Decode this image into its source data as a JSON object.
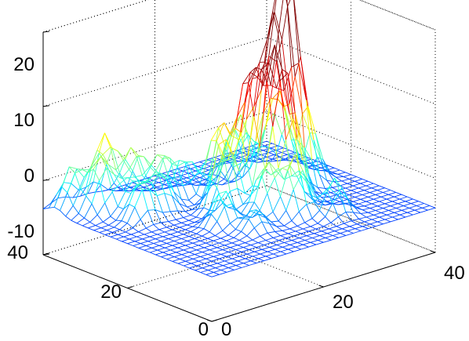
{
  "chart_data": {
    "type": "surface-mesh",
    "title": "",
    "xlabel": "",
    "ylabel": "",
    "zlabel": "",
    "xlim": [
      0,
      40
    ],
    "ylim": [
      0,
      40
    ],
    "zlim": [
      -10,
      20
    ],
    "x_ticks": [
      "0",
      "20",
      "40"
    ],
    "y_ticks": [
      "0",
      "20",
      "40"
    ],
    "z_ticks": [
      "-10",
      "0",
      "10",
      "20"
    ],
    "grid": true,
    "colormap": "jet",
    "colormap_colors": [
      "#00008f",
      "#0000ff",
      "#00ffff",
      "#ffff00",
      "#ff0000",
      "#800000"
    ],
    "color_range": [
      -10,
      14
    ],
    "grid_size": 31,
    "baseline_z": -4,
    "peaks": [
      {
        "x": 29,
        "y": 22,
        "z": 17.5,
        "width": 1.6
      },
      {
        "x": 23,
        "y": 22,
        "z": 11,
        "width": 1.6
      },
      {
        "x": 26,
        "y": 24,
        "z": 9,
        "width": 1.6
      },
      {
        "x": 30,
        "y": 25,
        "z": 11,
        "width": 1.6
      },
      {
        "x": 25,
        "y": 19,
        "z": 13,
        "width": 1.6
      },
      {
        "x": 27,
        "y": 17,
        "z": 8,
        "width": 1.6
      },
      {
        "x": 31,
        "y": 21,
        "z": 10,
        "width": 1.5
      },
      {
        "x": 33,
        "y": 28,
        "z": 7,
        "width": 1.6
      },
      {
        "x": 21,
        "y": 26,
        "z": 6,
        "width": 1.6
      },
      {
        "x": 18,
        "y": 21,
        "z": 6,
        "width": 1.6
      },
      {
        "x": 24,
        "y": 12,
        "z": 4,
        "width": 1.6
      },
      {
        "x": 29,
        "y": 32,
        "z": 4,
        "width": 1.6
      },
      {
        "x": 21,
        "y": 15,
        "z": 3,
        "width": 1.6
      },
      {
        "x": 14,
        "y": 16,
        "z": 1,
        "width": 1.5
      },
      {
        "x": 11,
        "y": 27,
        "z": 1,
        "width": 1.6
      },
      {
        "x": 8,
        "y": 30,
        "z": 0,
        "width": 1.6
      },
      {
        "x": 16,
        "y": 11,
        "z": -1,
        "width": 1.5
      },
      {
        "x": 5,
        "y": 33,
        "z": 3,
        "width": 1.6
      },
      {
        "x": 8,
        "y": 36,
        "z": 5,
        "width": 1.6
      },
      {
        "x": 11,
        "y": 33,
        "z": 3,
        "width": 1.6
      },
      {
        "x": 14,
        "y": 30,
        "z": 2.5,
        "width": 1.6
      },
      {
        "x": 3,
        "y": 37,
        "z": 2,
        "width": 1.6
      },
      {
        "x": 7,
        "y": 26,
        "z": 1,
        "width": 1.5
      },
      {
        "x": 18,
        "y": 30,
        "z": 1,
        "width": 1.5
      },
      {
        "x": 34,
        "y": 22,
        "z": 3,
        "width": 1.5
      },
      {
        "x": 28,
        "y": 8,
        "z": 1,
        "width": 1.5
      }
    ]
  }
}
